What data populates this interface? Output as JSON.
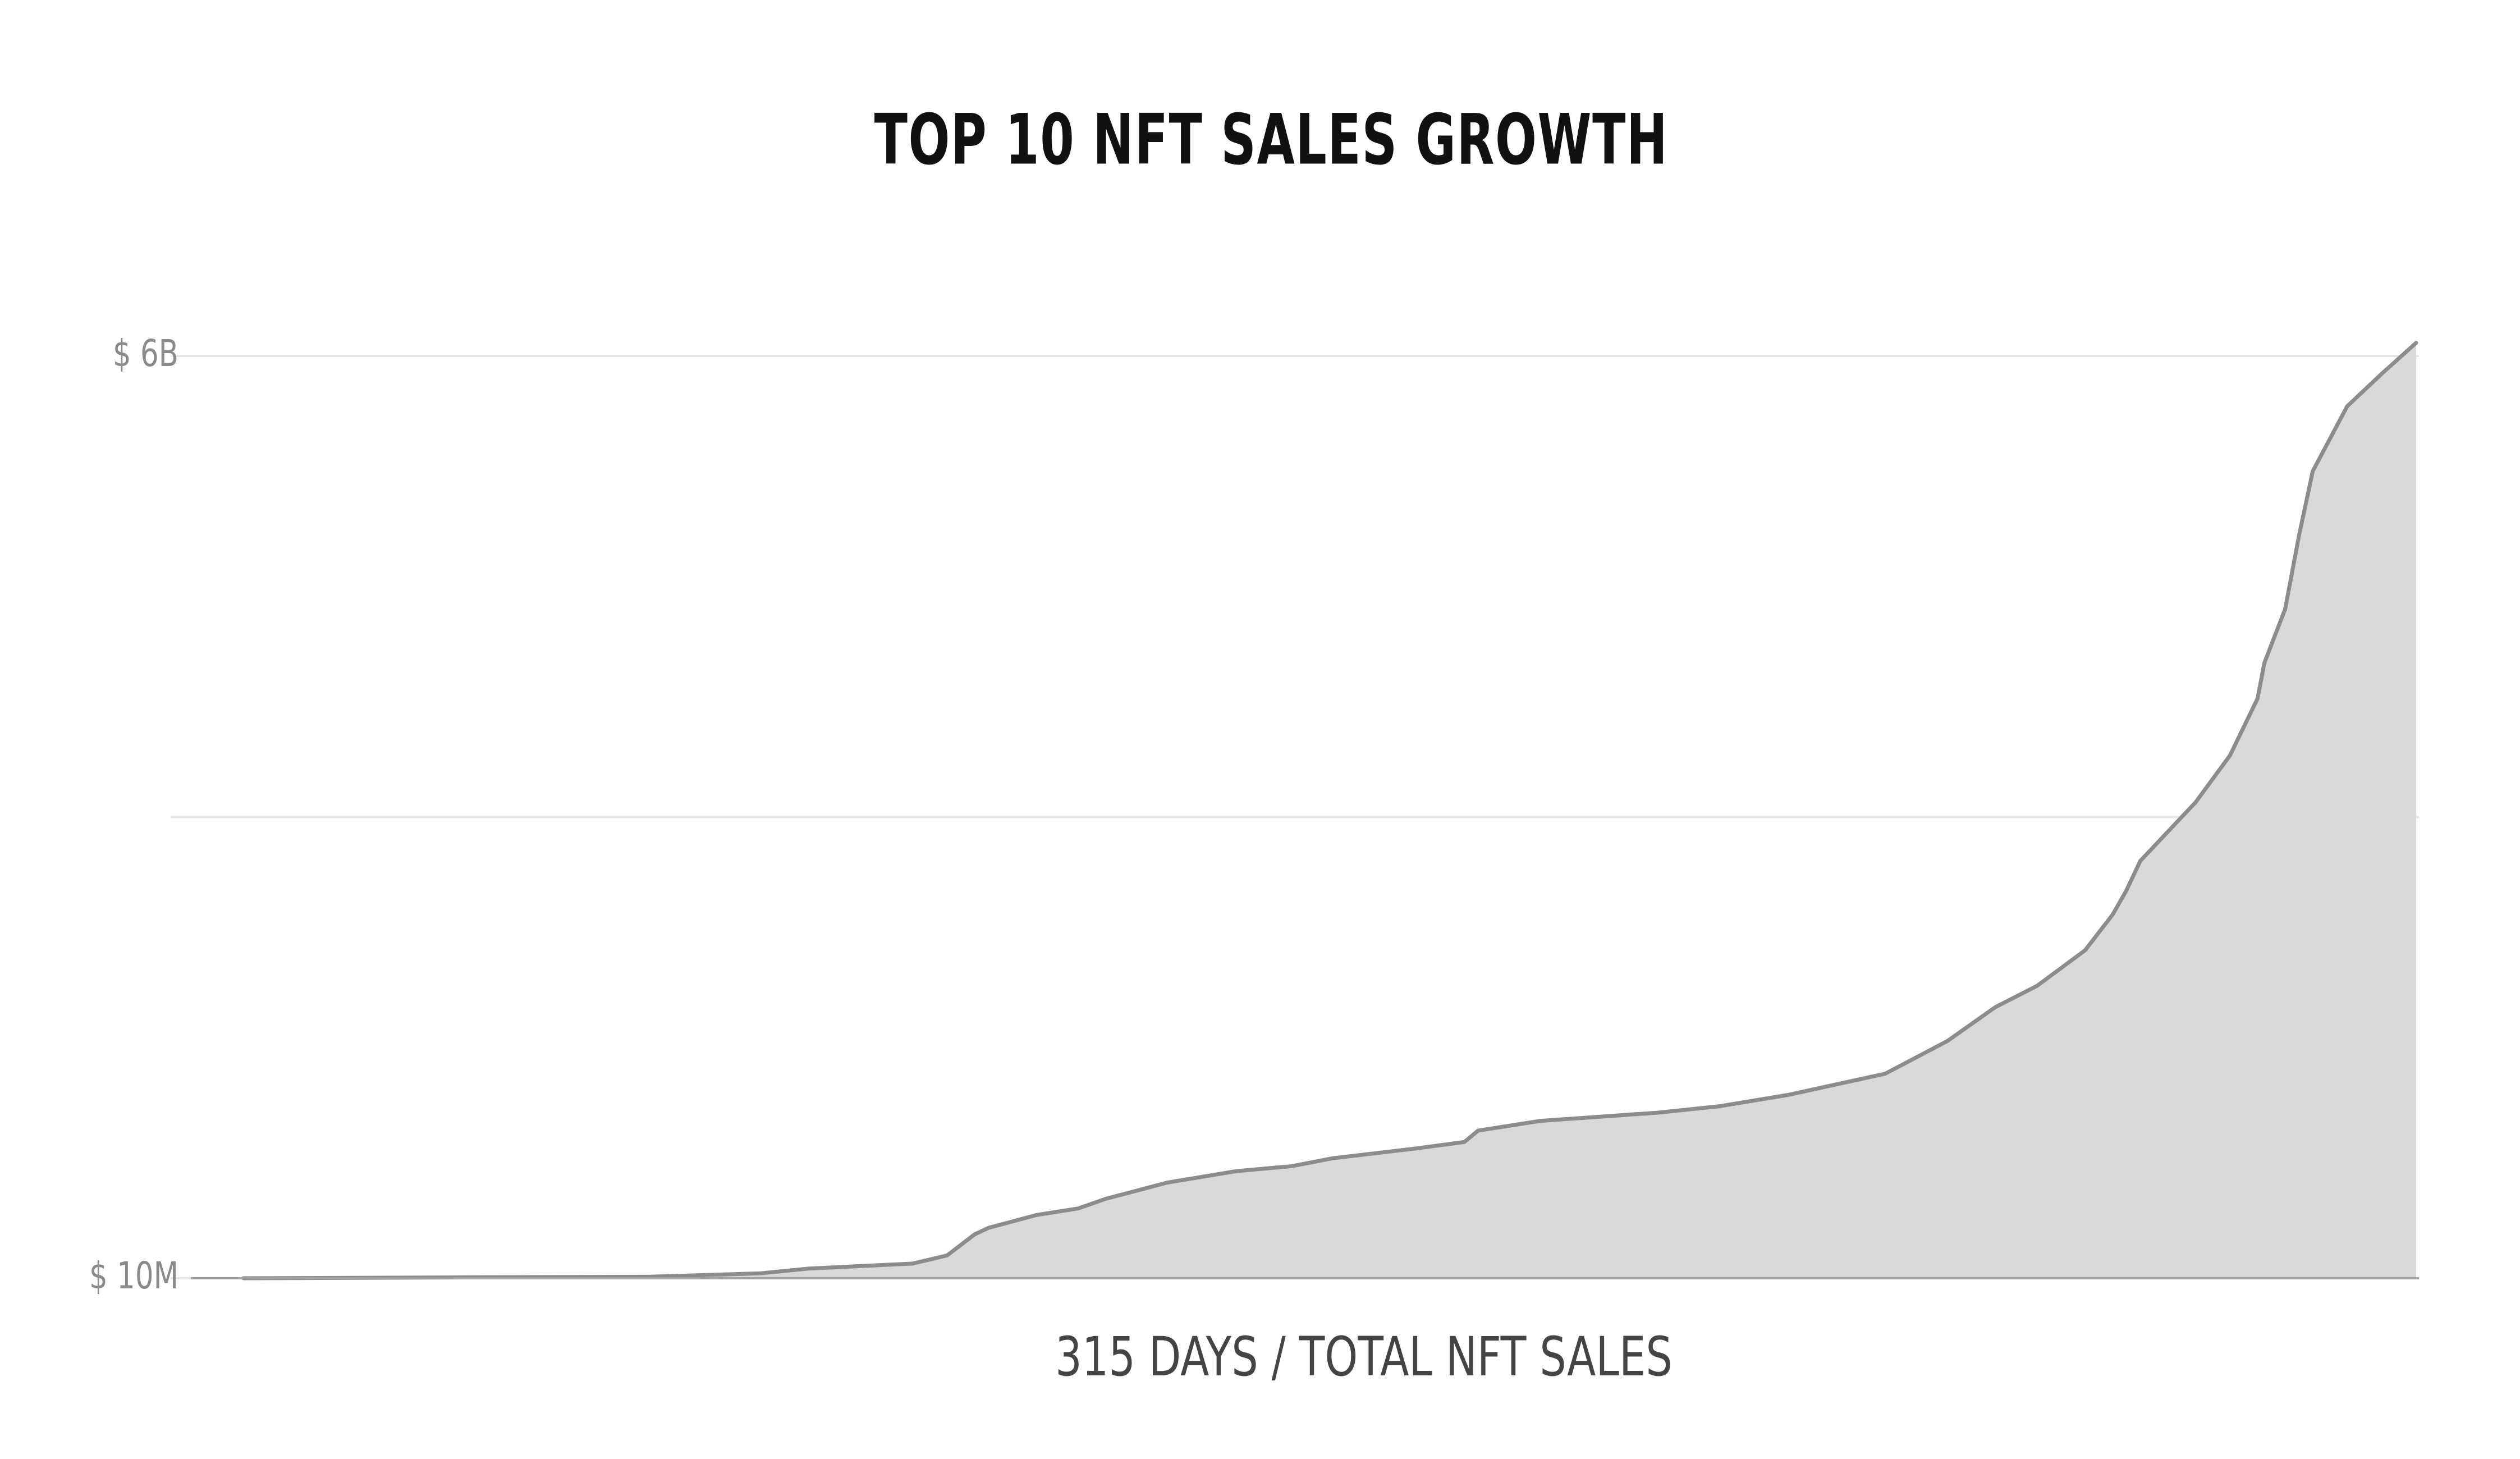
{
  "chart_data": {
    "type": "area",
    "title": "TOP 10 NFT SALES GROWTH",
    "x_label": "315 DAYS / TOTAL NFT SALES",
    "xlim": [
      0,
      315
    ],
    "ylim": [
      10000000,
      6000000000
    ],
    "yticks": [
      {
        "value": 10000000,
        "label": "$ 10M"
      },
      {
        "value": 3005000000,
        "label": null
      },
      {
        "value": 6000000000,
        "label": "$ 6B"
      }
    ],
    "grid": true,
    "series": [
      {
        "color": "#8c8c8c",
        "fill": "#d9d9d9",
        "x": [
          0,
          59,
          75,
          82,
          97,
          102,
          106,
          108,
          115,
          121,
          125,
          134,
          144,
          152,
          158,
          170,
          177,
          179,
          188,
          205,
          214,
          224,
          238,
          247,
          254,
          260,
          267,
          271,
          273,
          275,
          283,
          288,
          292,
          293,
          296,
          298,
          300,
          305,
          310,
          315
        ],
        "values": [
          10000000,
          20000000,
          42000000,
          73000000,
          105000000,
          158000000,
          295000000,
          337000000,
          421000000,
          463000000,
          526000000,
          632000000,
          706000000,
          738000000,
          790000000,
          853000000,
          895000000,
          969000000,
          1032000000,
          1085000000,
          1127000000,
          1201000000,
          1338000000,
          1550000000,
          1771000000,
          1908000000,
          2140000000,
          2372000000,
          2530000000,
          2720000000,
          3100000000,
          3405000000,
          3775000000,
          4007000000,
          4355000000,
          4830000000,
          5251000000,
          5673000000,
          5884000000,
          6085000000
        ]
      }
    ]
  }
}
